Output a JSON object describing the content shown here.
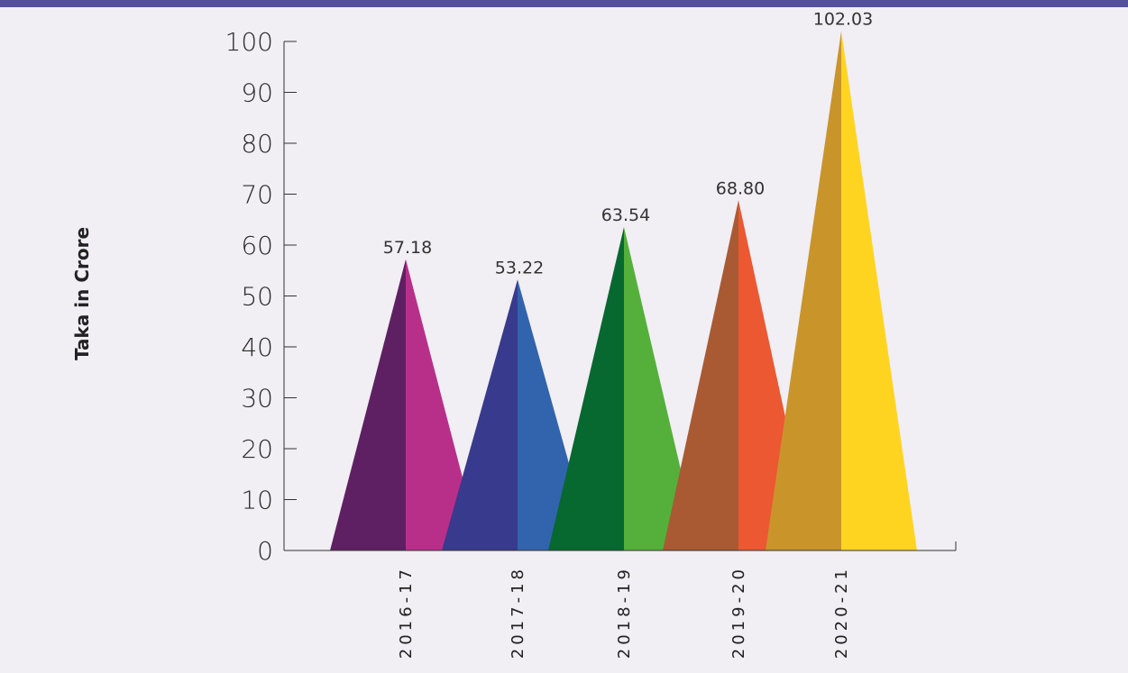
{
  "chart_data": {
    "type": "bar",
    "ylabel": "Taka in Crore",
    "categories": [
      "2016-17",
      "2017-18",
      "2018-19",
      "2019-20",
      "2020-21"
    ],
    "values": [
      57.18,
      53.22,
      63.54,
      68.8,
      102.03
    ],
    "value_labels": [
      "57.18",
      "53.22",
      "63.54",
      "68.80",
      "102.03"
    ],
    "ylim": [
      0,
      100
    ],
    "yticks": [
      "0",
      "10",
      "20",
      "30",
      "40",
      "50",
      "60",
      "70",
      "80",
      "90",
      "100"
    ],
    "grid": false,
    "legend": "none"
  },
  "colors": {
    "header_bar": "#54509a",
    "background": "#f1eef4",
    "series_dark": [
      "#5f2063",
      "#383a8e",
      "#076930",
      "#a95a33",
      "#c9952a"
    ],
    "series_light": [
      "#b82f8a",
      "#3264ad",
      "#55b03b",
      "#eb5832",
      "#ffd421"
    ]
  }
}
